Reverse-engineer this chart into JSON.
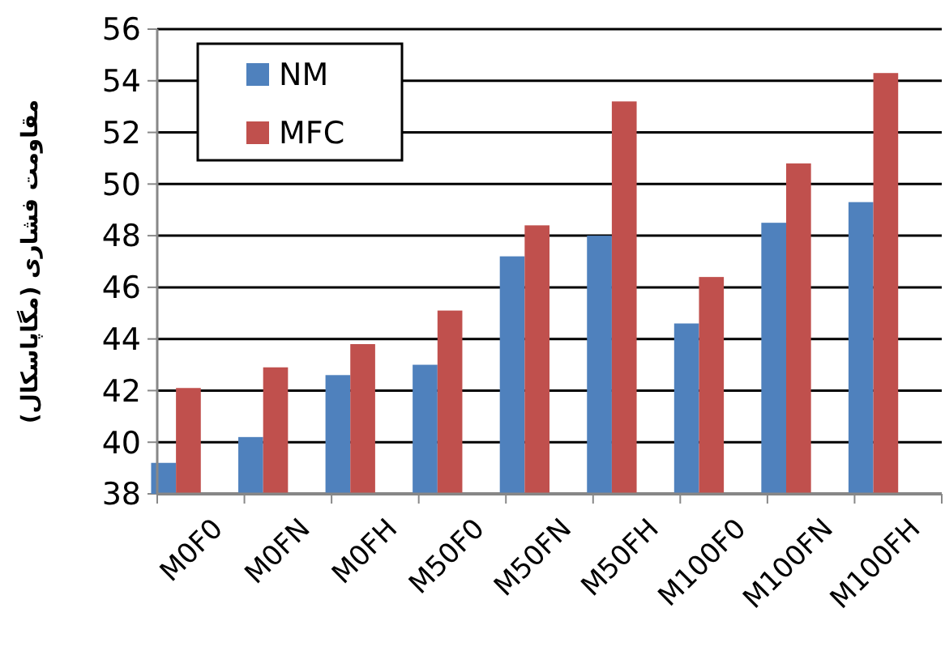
{
  "chart_data": {
    "type": "bar",
    "ylabel": "مقاومت فشاری (مگاپاسکال)",
    "categories": [
      "M0F0",
      "M0FN",
      "M0FH",
      "M50F0",
      "M50FN",
      "M50FH",
      "M100F0",
      "M100FN",
      "M100FH"
    ],
    "series": [
      {
        "name": "NM",
        "color": "#4f81bd",
        "values": [
          39.2,
          40.2,
          42.6,
          43.0,
          47.2,
          48.0,
          44.6,
          48.5,
          49.3
        ]
      },
      {
        "name": "MFC",
        "color": "#c0504d",
        "values": [
          42.1,
          42.9,
          43.8,
          45.1,
          48.4,
          53.2,
          46.4,
          50.8,
          54.3
        ]
      }
    ],
    "ylim": [
      38,
      56
    ],
    "yticks": [
      38,
      40,
      42,
      44,
      46,
      48,
      50,
      52,
      54,
      56
    ],
    "grid": "y",
    "legend": "top left"
  }
}
